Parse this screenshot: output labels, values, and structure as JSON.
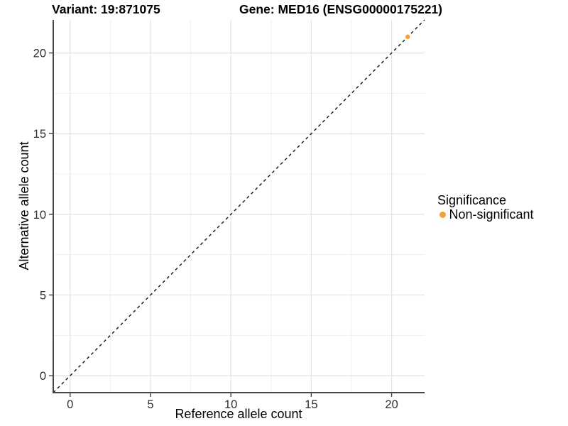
{
  "chart_data": {
    "type": "scatter",
    "titles": {
      "left": "Variant: 19:871075",
      "right": "Gene: MED16 (ENSG00000175221)"
    },
    "xlabel": "Reference allele count",
    "ylabel": "Alternative allele count",
    "xlim": [
      -1.05,
      22.05
    ],
    "ylim": [
      -1.05,
      22.05
    ],
    "x_major_ticks": [
      0,
      5,
      10,
      15,
      20
    ],
    "x_minor_ticks": [
      2.5,
      7.5,
      12.5,
      17.5
    ],
    "y_major_ticks": [
      0,
      5,
      10,
      15,
      20
    ],
    "y_minor_ticks": [
      2.5,
      7.5,
      12.5,
      17.5
    ],
    "grid": "on",
    "identity_line": {
      "slope": 1,
      "intercept": 0,
      "style": "dashed"
    },
    "series": [
      {
        "name": "Non-significant",
        "color": "#F9A032",
        "points": [
          [
            21,
            21
          ]
        ]
      }
    ],
    "legend": {
      "title": "Significance",
      "position": "right",
      "items": [
        {
          "label": "Non-significant",
          "color": "#F9A032"
        }
      ]
    }
  },
  "colors": {
    "background": "#ffffff",
    "grid_major": "#e3e3e3",
    "grid_minor": "#efefef",
    "axis_line": "#464646",
    "identity_line": "#111111",
    "tick_label": "#303030",
    "text": "#000000"
  }
}
